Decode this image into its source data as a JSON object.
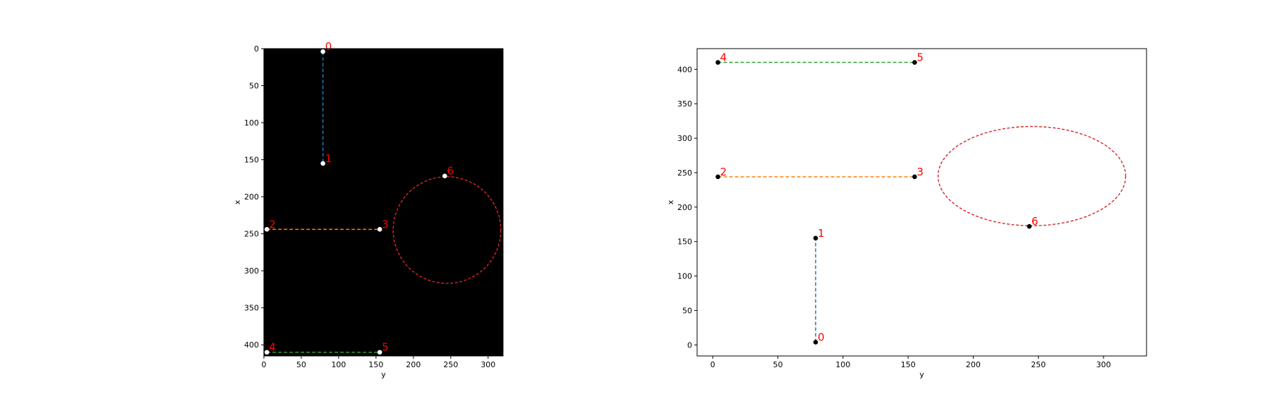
{
  "chart_data": [
    {
      "type": "scatter",
      "title": "",
      "xlabel": "y",
      "ylabel": "x",
      "background": "#000000",
      "xlim": [
        0,
        320
      ],
      "ylim": [
        415,
        0
      ],
      "xticks": [
        0,
        50,
        100,
        150,
        200,
        250,
        300
      ],
      "yticks": [
        0,
        50,
        100,
        150,
        200,
        250,
        300,
        350,
        400
      ],
      "point_color": "#ffffff",
      "label_color": "#ff0000",
      "points": [
        {
          "label": "0",
          "x": 79,
          "y": 4
        },
        {
          "label": "1",
          "x": 79,
          "y": 155
        },
        {
          "label": "2",
          "x": 4,
          "y": 244
        },
        {
          "label": "3",
          "x": 155,
          "y": 244
        },
        {
          "label": "4",
          "x": 4,
          "y": 410
        },
        {
          "label": "5",
          "x": 155,
          "y": 410
        },
        {
          "label": "6",
          "x": 242,
          "y": 172
        }
      ],
      "segments": [
        {
          "from": "0",
          "to": "1",
          "color": "#1f77b4"
        },
        {
          "from": "2",
          "to": "3",
          "color": "#ff7f0e"
        },
        {
          "from": "4",
          "to": "5",
          "color": "#2ca02c"
        }
      ],
      "ellipse": {
        "cx": 245,
        "cy": 245,
        "rx": 72,
        "ry": 72,
        "color": "#d62728"
      }
    },
    {
      "type": "scatter",
      "title": "",
      "xlabel": "y",
      "ylabel": "x",
      "background": "#ffffff",
      "xlim": [
        -12,
        333
      ],
      "ylim": [
        -16,
        430
      ],
      "xticks": [
        0,
        50,
        100,
        150,
        200,
        250,
        300
      ],
      "yticks": [
        0,
        50,
        100,
        150,
        200,
        250,
        300,
        350,
        400
      ],
      "point_color": "#000000",
      "label_color": "#ff0000",
      "points": [
        {
          "label": "0",
          "x": 79,
          "y": 4
        },
        {
          "label": "1",
          "x": 79,
          "y": 155
        },
        {
          "label": "2",
          "x": 4,
          "y": 244
        },
        {
          "label": "3",
          "x": 155,
          "y": 244
        },
        {
          "label": "4",
          "x": 4,
          "y": 410
        },
        {
          "label": "5",
          "x": 155,
          "y": 410
        },
        {
          "label": "6",
          "x": 243,
          "y": 172
        }
      ],
      "segments": [
        {
          "from": "0",
          "to": "1",
          "color": "#1f77b4"
        },
        {
          "from": "2",
          "to": "3",
          "color": "#ff7f0e"
        },
        {
          "from": "4",
          "to": "5",
          "color": "#2ca02c"
        }
      ],
      "ellipse": {
        "cx": 245,
        "cy": 245,
        "rx": 72,
        "ry": 72,
        "color": "#d62728"
      }
    }
  ]
}
